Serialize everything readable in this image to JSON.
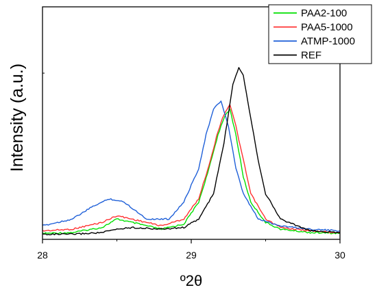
{
  "chart_data": {
    "type": "line",
    "xlabel": "º2θ",
    "ylabel": "Intensity (a.u.)",
    "xlim": [
      28,
      30
    ],
    "ylim": [
      0,
      100
    ],
    "xticks": [
      "28",
      "29",
      "30"
    ],
    "grid": false,
    "legend_position": "top-right",
    "series": [
      {
        "name": "PAA2-100",
        "color": "#00e000",
        "x": [
          28.0,
          28.2,
          28.4,
          28.5,
          28.6,
          28.8,
          28.95,
          29.05,
          29.12,
          29.18,
          29.22,
          29.26,
          29.3,
          29.35,
          29.4,
          29.5,
          29.6,
          29.8,
          30.0
        ],
        "y": [
          1.5,
          2,
          5,
          10,
          8,
          4,
          7,
          20,
          40,
          60,
          70,
          75,
          60,
          35,
          20,
          8,
          4,
          2,
          1.5
        ]
      },
      {
        "name": "PAA5-1000",
        "color": "#ff3030",
        "x": [
          28.0,
          28.2,
          28.4,
          28.5,
          28.6,
          28.8,
          28.95,
          29.05,
          29.12,
          29.18,
          29.22,
          29.26,
          29.3,
          29.35,
          29.4,
          29.5,
          29.6,
          29.8,
          30.0
        ],
        "y": [
          3,
          4,
          8,
          12,
          10,
          6,
          10,
          22,
          42,
          62,
          72,
          78,
          65,
          45,
          25,
          10,
          5,
          3,
          2
        ]
      },
      {
        "name": "ATMP-1000",
        "color": "#1e5fd8",
        "x": [
          28.0,
          28.2,
          28.35,
          28.45,
          28.55,
          28.7,
          28.85,
          28.95,
          29.05,
          29.1,
          29.15,
          29.2,
          29.25,
          29.3,
          29.35,
          29.45,
          29.6,
          29.8,
          30.0
        ],
        "y": [
          6,
          10,
          18,
          22,
          20,
          10,
          10,
          20,
          40,
          60,
          75,
          80,
          65,
          40,
          25,
          10,
          6,
          4,
          3
        ]
      },
      {
        "name": "REF",
        "color": "#000000",
        "x": [
          28.0,
          28.2,
          28.4,
          28.5,
          28.6,
          28.8,
          28.95,
          29.05,
          29.15,
          29.22,
          29.28,
          29.32,
          29.35,
          29.4,
          29.45,
          29.5,
          29.6,
          29.8,
          30.0
        ],
        "y": [
          1,
          1,
          2,
          4,
          5,
          4,
          5,
          10,
          25,
          55,
          90,
          100,
          95,
          70,
          45,
          25,
          10,
          3,
          2
        ]
      }
    ]
  }
}
